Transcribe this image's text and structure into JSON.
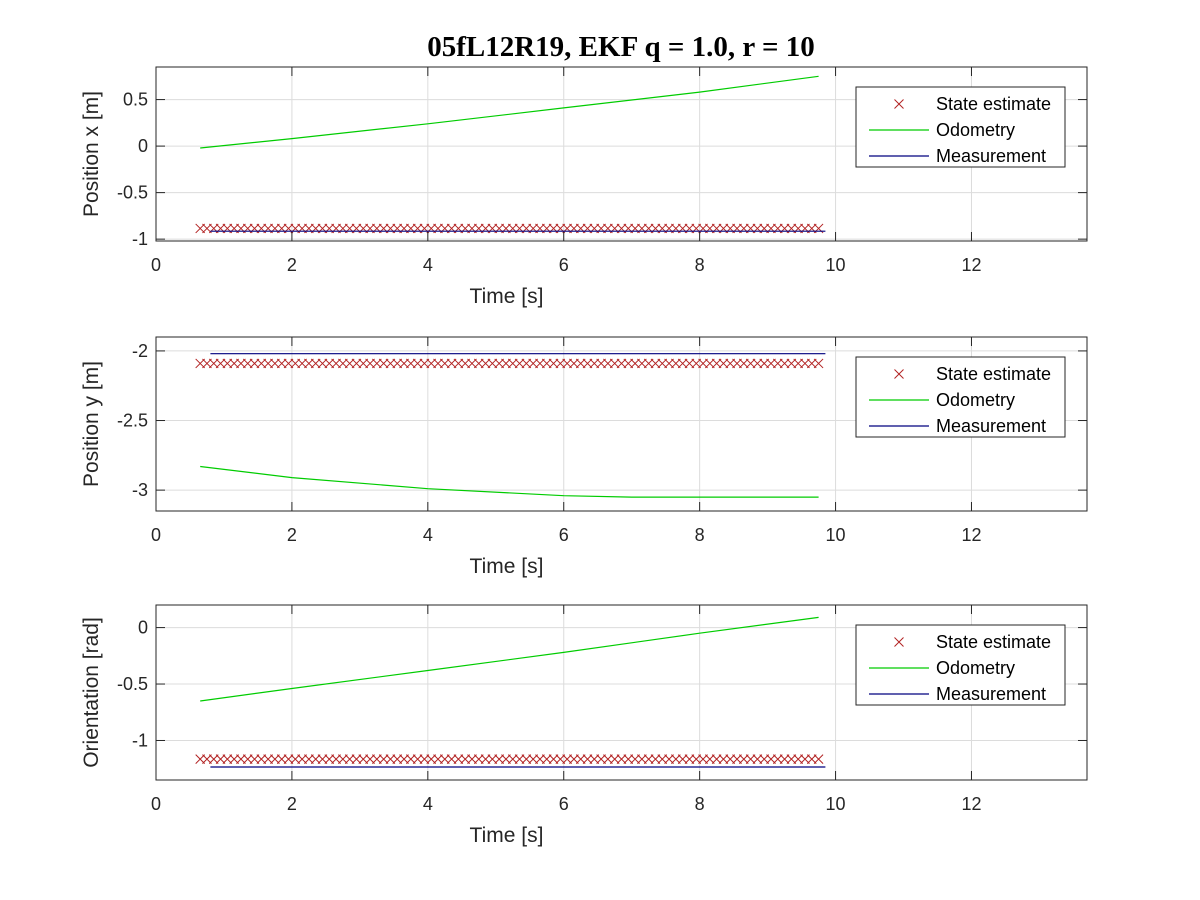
{
  "chart_data": [
    {
      "type": "line",
      "title": "05fL12R19, EKF q = 1.0, r = 10",
      "xlabel": "Time [s]",
      "ylabel": "Position x [m]",
      "xlim": [
        0,
        13.7
      ],
      "ylim": [
        -1.02,
        0.85
      ],
      "xticks": [
        0,
        2,
        4,
        6,
        8,
        10,
        12
      ],
      "yticks": [
        -1,
        -0.5,
        0,
        0.5
      ],
      "ytick_labels": [
        "-1",
        "-0.5",
        "0",
        "0.5"
      ],
      "grid": true,
      "legend": "top-right",
      "series": [
        {
          "name": "State estimate",
          "marker": "x",
          "color": "#b22222",
          "x_start": 0.65,
          "x_end": 9.75,
          "x_step": 0.1,
          "y": -0.885
        },
        {
          "name": "Odometry",
          "color": "#00cc00",
          "x": [
            0.65,
            2,
            4,
            6,
            8,
            9.75
          ],
          "y": [
            -0.02,
            0.08,
            0.24,
            0.41,
            0.58,
            0.75
          ]
        },
        {
          "name": "Measurement",
          "color": "#00007f",
          "x": [
            0.8,
            9.85
          ],
          "y": [
            -0.915,
            -0.915
          ]
        }
      ]
    },
    {
      "type": "line",
      "title": "",
      "xlabel": "Time [s]",
      "ylabel": "Position y [m]",
      "xlim": [
        0,
        13.7
      ],
      "ylim": [
        -3.15,
        -1.9
      ],
      "xticks": [
        0,
        2,
        4,
        6,
        8,
        10,
        12
      ],
      "yticks": [
        -3,
        -2.5,
        -2
      ],
      "ytick_labels": [
        "-3",
        "-2.5",
        "-2"
      ],
      "grid": true,
      "legend": "top-right",
      "series": [
        {
          "name": "State estimate",
          "marker": "x",
          "color": "#b22222",
          "x_start": 0.65,
          "x_end": 9.75,
          "x_step": 0.1,
          "y": -2.09
        },
        {
          "name": "Odometry",
          "color": "#00cc00",
          "x": [
            0.65,
            2,
            4,
            6,
            7,
            8,
            9.75
          ],
          "y": [
            -2.83,
            -2.91,
            -2.99,
            -3.04,
            -3.05,
            -3.05,
            -3.05
          ]
        },
        {
          "name": "Measurement",
          "color": "#00007f",
          "x": [
            0.8,
            9.85
          ],
          "y": [
            -2.02,
            -2.02
          ]
        }
      ]
    },
    {
      "type": "line",
      "title": "",
      "xlabel": "Time [s]",
      "ylabel": "Orientation [rad]",
      "xlim": [
        0,
        13.7
      ],
      "ylim": [
        -1.35,
        0.2
      ],
      "xticks": [
        0,
        2,
        4,
        6,
        8,
        10,
        12
      ],
      "yticks": [
        -1,
        -0.5,
        0
      ],
      "ytick_labels": [
        "-1",
        "-0.5",
        "0"
      ],
      "grid": true,
      "legend": "top-right",
      "series": [
        {
          "name": "State estimate",
          "marker": "x",
          "color": "#b22222",
          "x_start": 0.65,
          "x_end": 9.75,
          "x_step": 0.1,
          "y": -1.165
        },
        {
          "name": "Odometry",
          "color": "#00cc00",
          "x": [
            0.65,
            2,
            4,
            6,
            8,
            9.75
          ],
          "y": [
            -0.65,
            -0.54,
            -0.38,
            -0.22,
            -0.05,
            0.09
          ]
        },
        {
          "name": "Measurement",
          "color": "#00007f",
          "x": [
            0.8,
            9.85
          ],
          "y": [
            -1.235,
            -1.235
          ]
        }
      ]
    }
  ]
}
